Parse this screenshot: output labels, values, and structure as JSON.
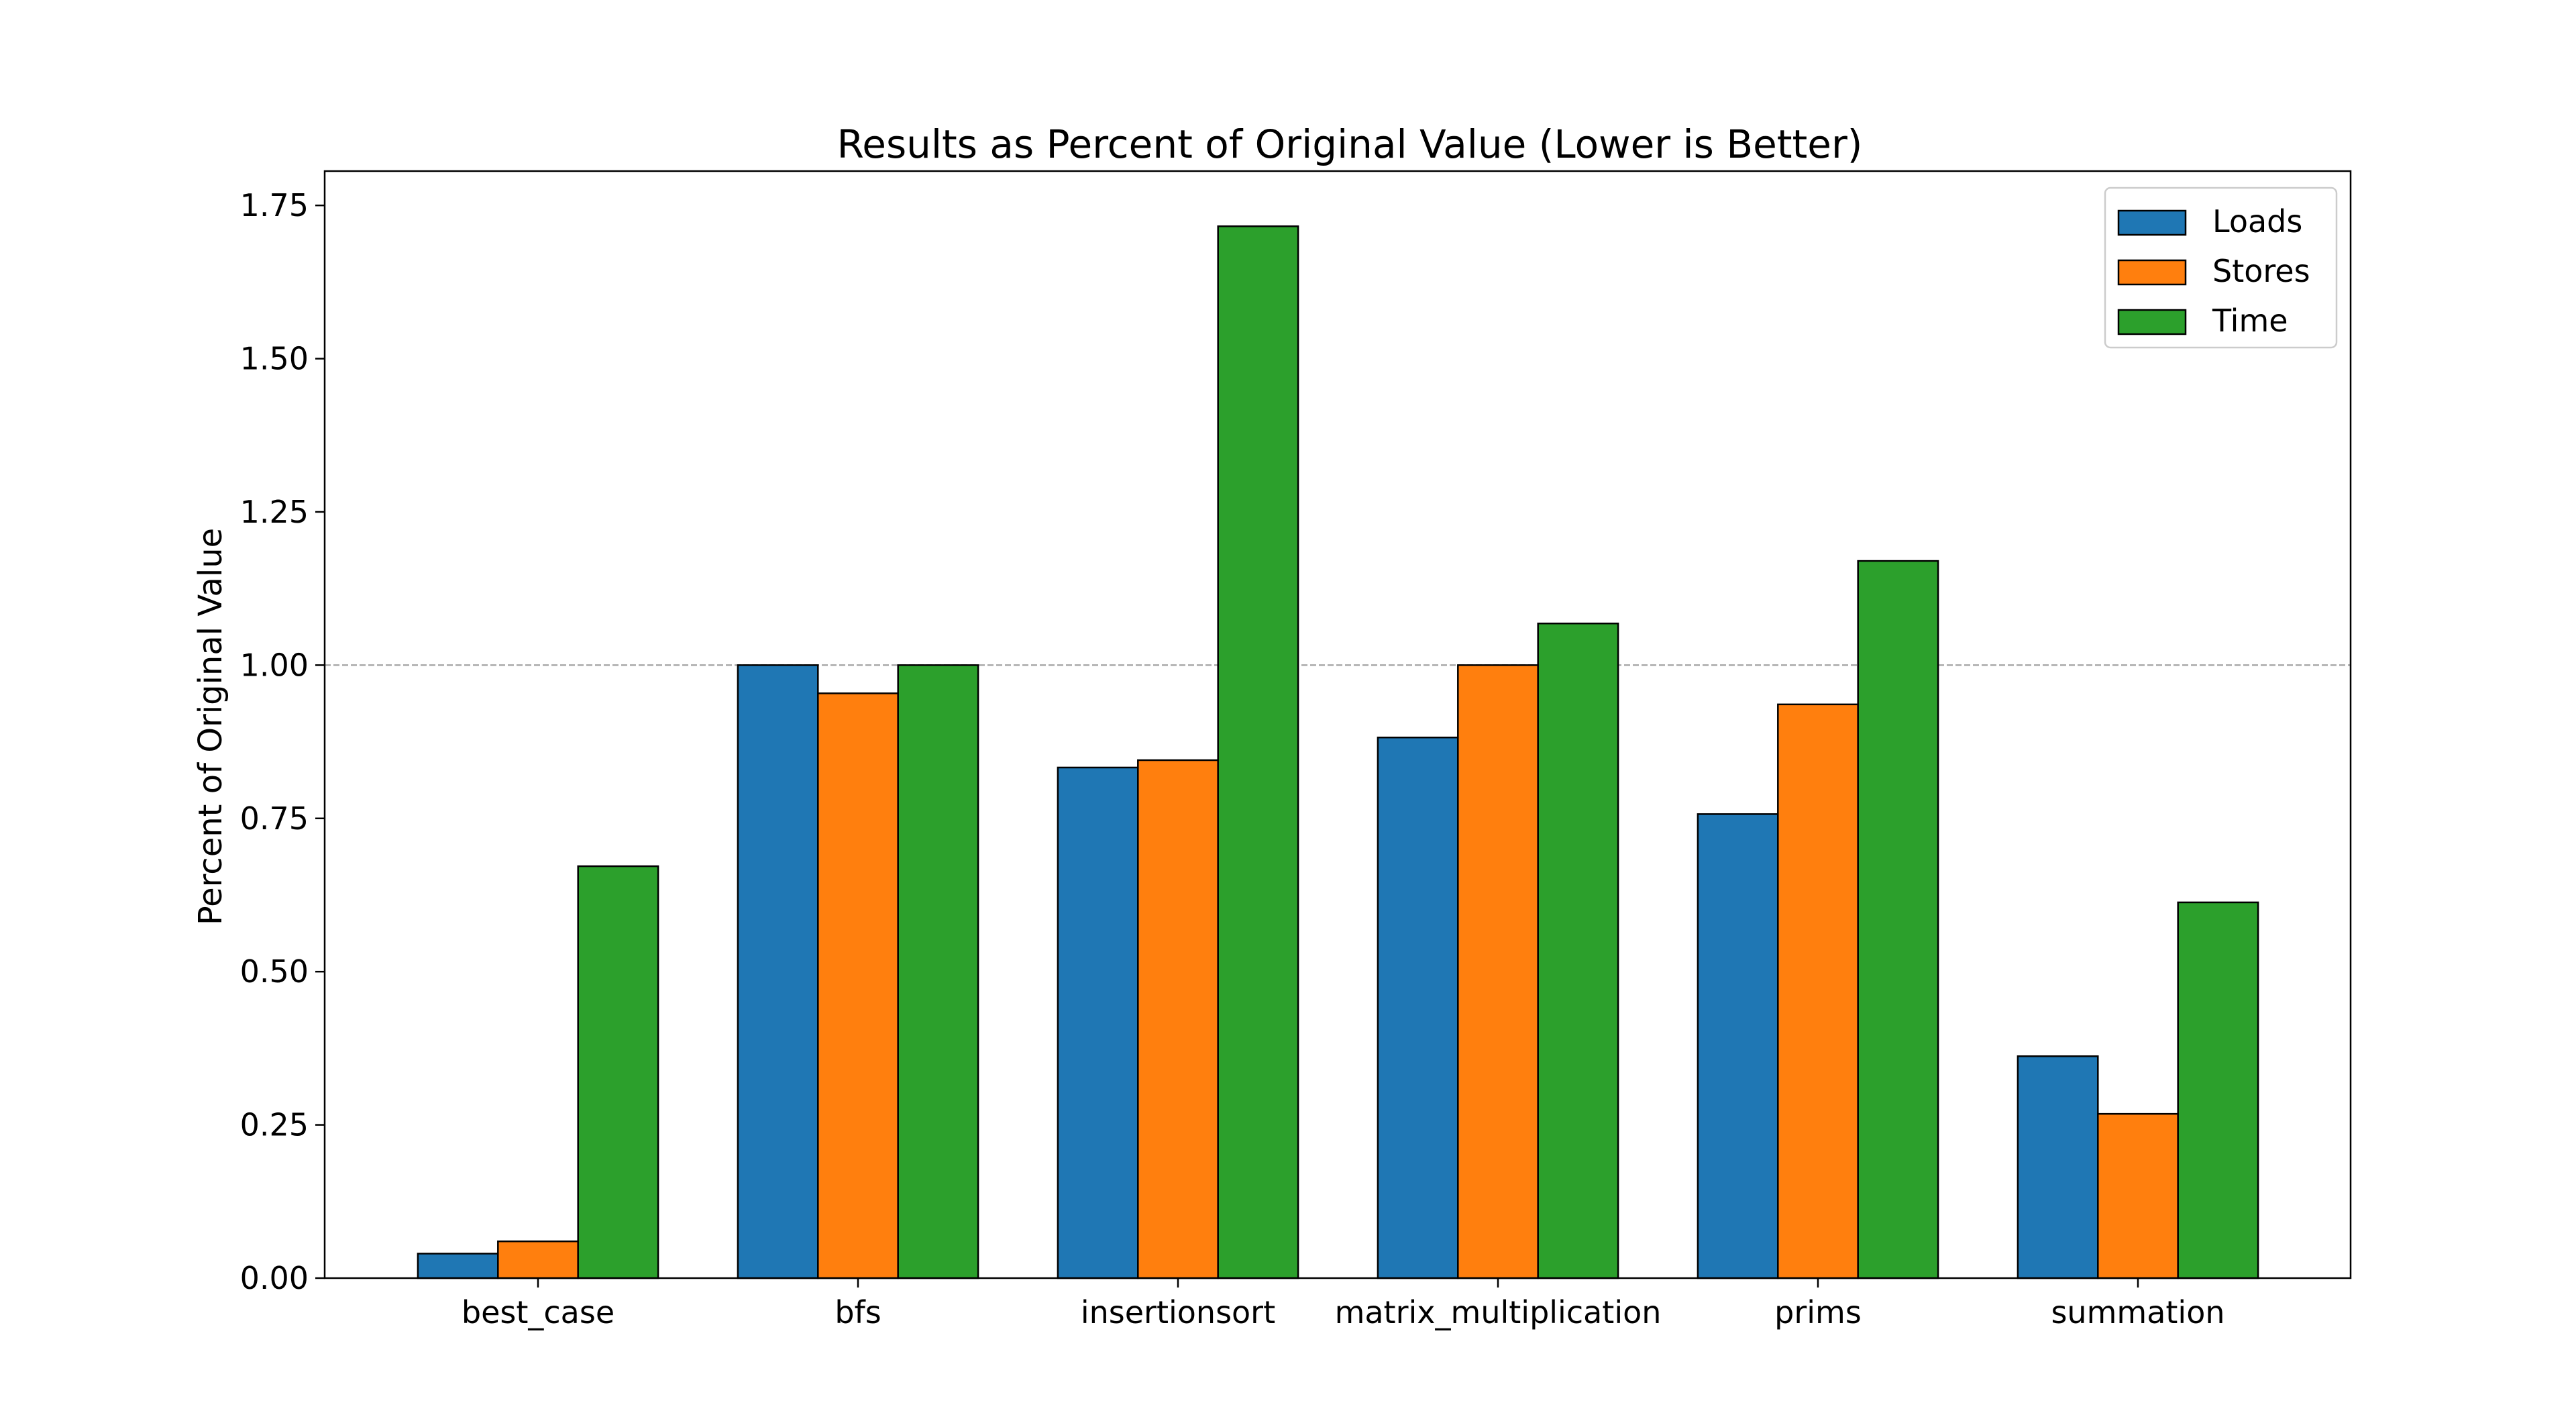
{
  "chart_data": {
    "type": "bar",
    "title": "Results as Percent of Original Value (Lower is Better)",
    "xlabel": "",
    "ylabel": "Percent of Original Value",
    "ylim": [
      0,
      1.806
    ],
    "yticks": [
      0.0,
      0.25,
      0.5,
      0.75,
      1.0,
      1.25,
      1.5,
      1.75
    ],
    "ytick_labels": [
      "0.00",
      "0.25",
      "0.50",
      "0.75",
      "1.00",
      "1.25",
      "1.50",
      "1.75"
    ],
    "categories": [
      "best_case",
      "bfs",
      "insertionsort",
      "matrix_multiplication",
      "prims",
      "summation"
    ],
    "series": [
      {
        "name": "Loads",
        "color": "#1f77b4",
        "values": [
          0.04,
          1.0,
          0.833,
          0.882,
          0.757,
          0.362
        ]
      },
      {
        "name": "Stores",
        "color": "#ff7f0e",
        "values": [
          0.06,
          0.954,
          0.845,
          1.0,
          0.936,
          0.268
        ]
      },
      {
        "name": "Time",
        "color": "#2ca02c",
        "values": [
          0.672,
          1.0,
          1.716,
          1.068,
          1.17,
          0.613
        ]
      }
    ],
    "reference_line": {
      "y": 1.0,
      "style": "dashed",
      "color": "#aaaaaa"
    },
    "legend": {
      "placement": "top-right"
    },
    "grid": false
  }
}
